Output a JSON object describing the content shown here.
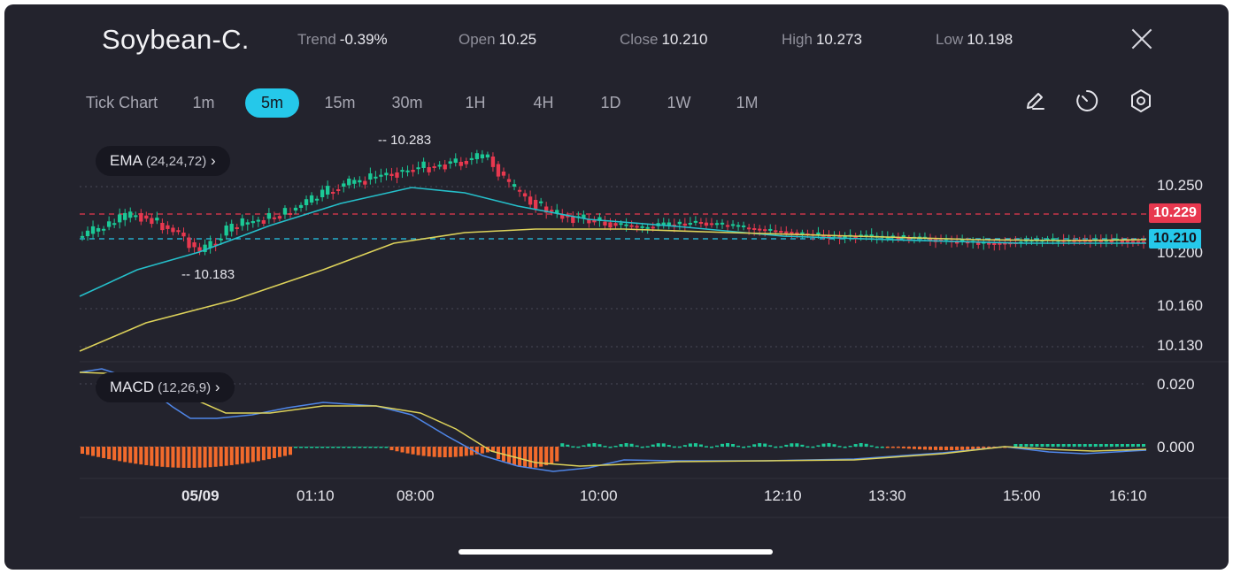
{
  "header": {
    "symbol": "Soybean-C.",
    "stats": [
      {
        "key": "Trend",
        "value": "-0.39%"
      },
      {
        "key": "Open",
        "value": "10.25"
      },
      {
        "key": "Close",
        "value": "10.210"
      },
      {
        "key": "High",
        "value": "10.273"
      },
      {
        "key": "Low",
        "value": "10.198"
      }
    ],
    "close_icon": "close-icon"
  },
  "timeframes": {
    "items": [
      "Tick Chart",
      "1m",
      "5m",
      "15m",
      "30m",
      "1H",
      "4H",
      "1D",
      "1W",
      "1M"
    ],
    "active": "5m"
  },
  "tools": [
    "pencil-icon",
    "timer-icon",
    "settings-hexagon-icon"
  ],
  "indicators": {
    "ema": {
      "name": "EMA",
      "params": "(24,24,72)"
    },
    "macd": {
      "name": "MACD",
      "params": "(12,26,9)"
    }
  },
  "price_axis": {
    "labels": [
      "10.250",
      "10.200",
      "10.160",
      "10.130"
    ],
    "ref_tag": "10.229",
    "current_tag": "10.210"
  },
  "macd_axis": {
    "labels": [
      "0.020",
      "0.000"
    ]
  },
  "annotations": {
    "high": "10.283",
    "low": "10.183"
  },
  "time_axis": {
    "labels": [
      "05/09",
      "01:10",
      "08:00",
      "10:00",
      "12:10",
      "13:30",
      "15:00",
      "16:10"
    ]
  },
  "colors": {
    "background": "#23232d",
    "up": "#1bc996",
    "down": "#e8384f",
    "ema_fast": "#25bfca",
    "ema_slow": "#ddd25a",
    "macd_line": "#4f86e8",
    "signal_line": "#ddd25a",
    "hist_neg": "#f26a2c",
    "hist_pos": "#1bc996",
    "accent": "#25c8ea",
    "ref_line": "#e8384f"
  }
}
